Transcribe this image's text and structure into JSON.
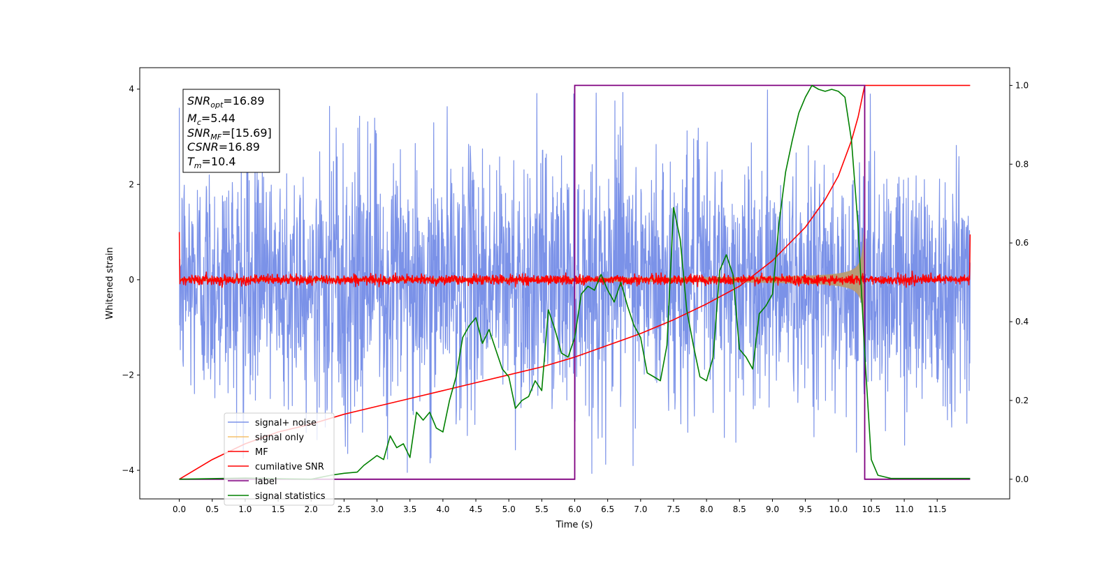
{
  "chart_data": {
    "type": "line",
    "xlabel": "Time (s)",
    "ylabel": "Whitened strain",
    "xlim": [
      -0.6,
      12.6
    ],
    "ylim": [
      -4.6,
      4.45
    ],
    "y2lim": [
      -0.05,
      1.045
    ],
    "x_ticks": [
      "0.0",
      "0.5",
      "1.0",
      "1.5",
      "2.0",
      "2.5",
      "3.0",
      "3.5",
      "4.0",
      "4.5",
      "5.0",
      "5.5",
      "6.0",
      "6.5",
      "7.0",
      "7.5",
      "8.0",
      "8.5",
      "9.0",
      "9.5",
      "10.0",
      "10.5",
      "11.0",
      "11.5"
    ],
    "y_ticks": [
      "4",
      "2",
      "0",
      "−2",
      "−4"
    ],
    "y2_ticks": [
      "1.0",
      "0.8",
      "0.6",
      "0.4",
      "0.2",
      "0.0"
    ],
    "legend_placement": "lower-left",
    "annotation": {
      "snr_opt": {
        "symbol": "SNR",
        "sub": "opt",
        "value": "=16.89"
      },
      "mc": {
        "symbol": "M",
        "sub": "c",
        "value": "=5.44"
      },
      "snr_mf": {
        "symbol": "SNR",
        "sub": "MF",
        "value": "=[15.69]"
      },
      "csnr": {
        "symbol": "CSNR",
        "sub": "",
        "value": "=16.89"
      },
      "tm": {
        "symbol": "T",
        "sub": "m",
        "value": "=10.4"
      }
    },
    "series": [
      {
        "name": "signal+ noise",
        "color": "#7b92e8",
        "axis": "left",
        "kind": "noise",
        "x_range": [
          0,
          12
        ],
        "amplitude_sd": 1.3,
        "samples": 2400
      },
      {
        "name": "signal only",
        "color": "#f5c06b",
        "axis": "left",
        "kind": "chirp",
        "merger_time": 10.4,
        "peak_amplitude": 3.2
      },
      {
        "name": "MF",
        "color": "#ff0000",
        "axis": "left",
        "kind": "mf",
        "baseline_sd": 0.05,
        "edge_values": [
          1.0,
          0.95
        ]
      },
      {
        "name": "cumilative SNR",
        "color": "#ff0000",
        "axis": "right",
        "x": [
          0.0,
          0.5,
          1.0,
          1.5,
          2.0,
          2.5,
          3.0,
          3.5,
          4.0,
          4.5,
          5.0,
          5.5,
          6.0,
          6.5,
          7.0,
          7.5,
          8.0,
          8.5,
          9.0,
          9.5,
          9.8,
          10.0,
          10.2,
          10.3,
          10.4,
          12.0
        ],
        "values": [
          0.0,
          0.05,
          0.09,
          0.12,
          0.14,
          0.165,
          0.185,
          0.205,
          0.225,
          0.245,
          0.265,
          0.285,
          0.31,
          0.34,
          0.37,
          0.405,
          0.445,
          0.49,
          0.555,
          0.64,
          0.71,
          0.77,
          0.86,
          0.92,
          1.0,
          1.0
        ]
      },
      {
        "name": "label",
        "color": "#800080",
        "axis": "right",
        "x": [
          0.0,
          6.0,
          6.0,
          10.4,
          10.4,
          12.0
        ],
        "values": [
          0.0,
          0.0,
          1.0,
          1.0,
          0.0,
          0.0
        ]
      },
      {
        "name": "signal statistics",
        "color": "#008000",
        "axis": "right",
        "x": [
          0.0,
          1.0,
          2.0,
          2.3,
          2.5,
          2.7,
          2.8,
          3.0,
          3.1,
          3.2,
          3.3,
          3.4,
          3.5,
          3.6,
          3.7,
          3.8,
          3.9,
          4.0,
          4.1,
          4.2,
          4.3,
          4.4,
          4.5,
          4.6,
          4.7,
          4.8,
          4.9,
          5.0,
          5.1,
          5.2,
          5.3,
          5.4,
          5.5,
          5.6,
          5.7,
          5.8,
          5.9,
          6.0,
          6.1,
          6.2,
          6.3,
          6.4,
          6.5,
          6.6,
          6.7,
          6.8,
          6.9,
          7.0,
          7.1,
          7.2,
          7.3,
          7.4,
          7.5,
          7.6,
          7.7,
          7.8,
          7.9,
          8.0,
          8.1,
          8.2,
          8.3,
          8.4,
          8.5,
          8.6,
          8.7,
          8.8,
          8.9,
          9.0,
          9.1,
          9.2,
          9.3,
          9.4,
          9.5,
          9.6,
          9.7,
          9.8,
          9.9,
          10.0,
          10.1,
          10.2,
          10.3,
          10.4,
          10.5,
          10.6,
          10.8,
          12.0
        ],
        "values": [
          0.0,
          0.003,
          0.0,
          0.01,
          0.015,
          0.018,
          0.035,
          0.06,
          0.05,
          0.11,
          0.08,
          0.09,
          0.055,
          0.17,
          0.15,
          0.17,
          0.13,
          0.12,
          0.2,
          0.26,
          0.36,
          0.39,
          0.41,
          0.345,
          0.38,
          0.33,
          0.28,
          0.26,
          0.18,
          0.2,
          0.21,
          0.25,
          0.225,
          0.43,
          0.38,
          0.32,
          0.31,
          0.36,
          0.47,
          0.49,
          0.48,
          0.52,
          0.48,
          0.45,
          0.5,
          0.44,
          0.39,
          0.36,
          0.27,
          0.26,
          0.25,
          0.34,
          0.69,
          0.61,
          0.43,
          0.34,
          0.26,
          0.25,
          0.31,
          0.53,
          0.57,
          0.52,
          0.33,
          0.31,
          0.28,
          0.42,
          0.44,
          0.47,
          0.65,
          0.78,
          0.86,
          0.93,
          0.97,
          1.0,
          0.99,
          0.985,
          0.99,
          0.985,
          0.97,
          0.86,
          0.64,
          0.32,
          0.05,
          0.01,
          0.002,
          0.002
        ]
      }
    ]
  }
}
